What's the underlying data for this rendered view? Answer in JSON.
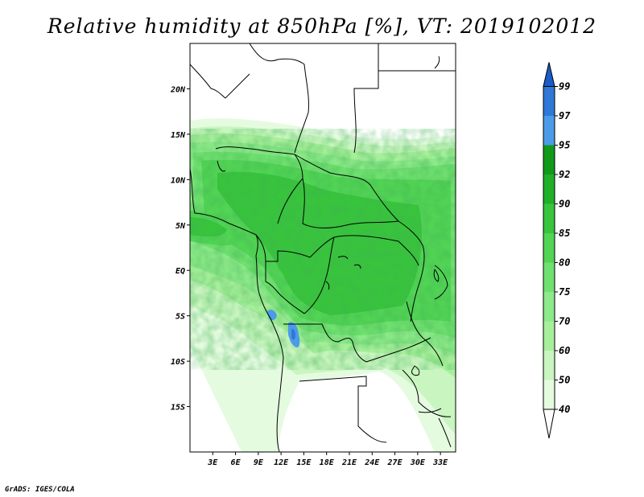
{
  "title": "Relative humidity at 850hPa [%], VT: 2019102012",
  "credit": "GrADS: IGES/COLA",
  "map": {
    "lon_range": [
      0,
      35
    ],
    "lat_range": [
      -20,
      25
    ],
    "lat_ticks": [
      {
        "value": 20,
        "label": "20N"
      },
      {
        "value": 15,
        "label": "15N"
      },
      {
        "value": 10,
        "label": "10N"
      },
      {
        "value": 5,
        "label": "5N"
      },
      {
        "value": 0,
        "label": "EQ"
      },
      {
        "value": -5,
        "label": "5S"
      },
      {
        "value": -10,
        "label": "10S"
      },
      {
        "value": -15,
        "label": "15S"
      }
    ],
    "lon_ticks": [
      {
        "value": 3,
        "label": "3E"
      },
      {
        "value": 6,
        "label": "6E"
      },
      {
        "value": 9,
        "label": "9E"
      },
      {
        "value": 12,
        "label": "12E"
      },
      {
        "value": 15,
        "label": "15E"
      },
      {
        "value": 18,
        "label": "18E"
      },
      {
        "value": 21,
        "label": "21E"
      },
      {
        "value": 24,
        "label": "24E"
      },
      {
        "value": 27,
        "label": "27E"
      },
      {
        "value": 30,
        "label": "30E"
      },
      {
        "value": 33,
        "label": "33E"
      }
    ]
  },
  "colorbar": {
    "levels": [
      "40",
      "50",
      "60",
      "70",
      "75",
      "80",
      "85",
      "90",
      "92",
      "95",
      "97",
      "99"
    ],
    "colors": [
      "#ffffff",
      "#e5fbe0",
      "#c9f5c0",
      "#a8ef9c",
      "#8de98a",
      "#70e070",
      "#52d455",
      "#38c43c",
      "#20b028",
      "#119a1a",
      "#4b9be8",
      "#2f78d8",
      "#1a5cc8"
    ]
  }
}
